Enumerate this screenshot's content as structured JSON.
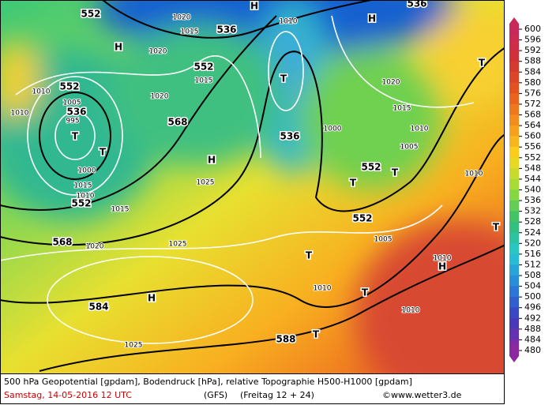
{
  "map": {
    "geopotential_labels": [
      552,
      536,
      552,
      552,
      536,
      568,
      536,
      552,
      552,
      552,
      568,
      584,
      588,
      536
    ],
    "pressure_labels": [
      1015,
      1020,
      1015,
      1010,
      1005,
      1020,
      1015,
      1010,
      1005,
      1000,
      1010,
      1025,
      1020,
      1025,
      1010,
      1020,
      1015,
      1005,
      1010,
      1010,
      1025,
      1010,
      1010,
      1000,
      995,
      1015,
      1010,
      1020
    ],
    "centers": [
      "T",
      "T",
      "H",
      "T",
      "T",
      "T",
      "T",
      "T",
      "T",
      "H",
      "H",
      "H",
      "H",
      "T",
      "T",
      "H"
    ]
  },
  "colorbar": {
    "labels": [
      600,
      596,
      592,
      588,
      584,
      580,
      576,
      572,
      568,
      564,
      560,
      556,
      552,
      548,
      544,
      540,
      536,
      532,
      528,
      524,
      520,
      516,
      512,
      508,
      504,
      500,
      496,
      492,
      488,
      484,
      480
    ]
  },
  "footer": {
    "description": "500 hPa Geopotential [gpdam], Bodendruck [hPa], relative Topographie H500-H1000 [gpdam]",
    "date": "Samstag, 14-05-2016  12 UTC",
    "model": "(GFS)",
    "run": "(Freitag 12 + 24)",
    "credit": "©www.wetter3.de"
  }
}
